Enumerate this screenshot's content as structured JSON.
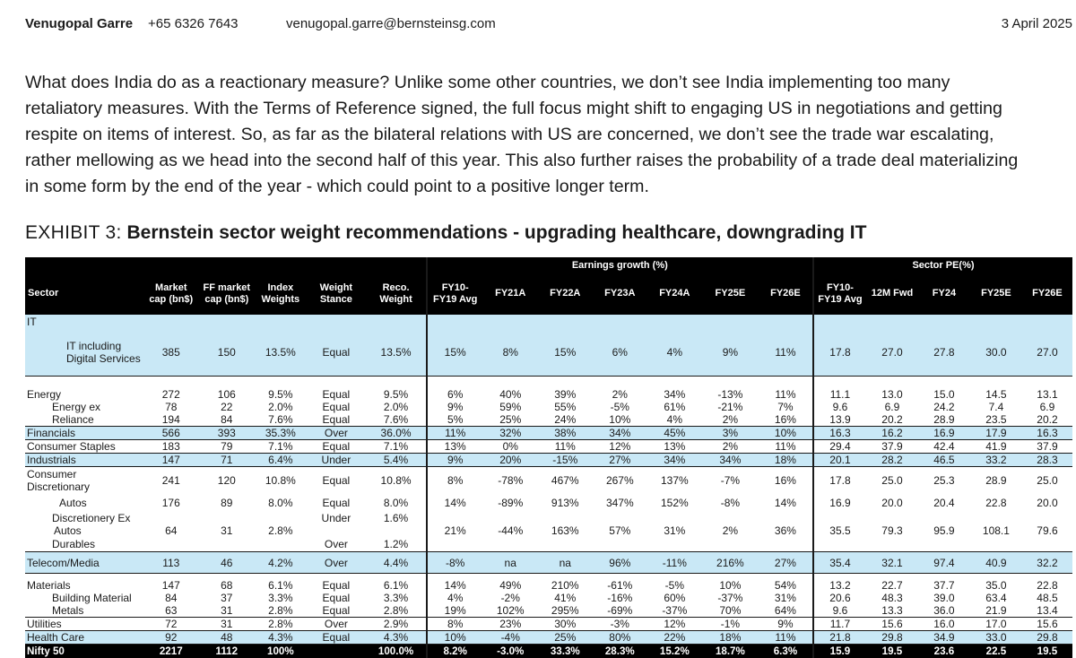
{
  "header": {
    "name": "Venugopal Garre",
    "phone": "+65 6326 7643",
    "email": "venugopal.garre@bernsteinsg.com",
    "date": "3 April 2025"
  },
  "paragraph_lines": [
    "What does India do as a reactionary measure? Unlike some other countries, we don’t see India implementing too many",
    "retaliatory measures. With the Terms of Reference signed, the full focus might shift to engaging US in negotiations and getting",
    "respite on items of interest. So, as far as the bilateral relations with US are concerned, we don’t see the trade war escalating,",
    "rather mellowing as we head into the second half of this year. This also further raises the probability of a trade deal materializing",
    "in some form by the end of the year - which could point to a positive longer term."
  ],
  "exhibit": {
    "number": "EXHIBIT 3:",
    "title": "Bernstein sector weight recommendations - upgrading healthcare, downgrading IT"
  },
  "table": {
    "group_headers": {
      "earnings": "Earnings growth (%)",
      "pe": "Sector PE(%)"
    },
    "columns": {
      "sector": "Sector",
      "mcap": [
        "Market",
        "cap (bn$)"
      ],
      "ffmcap": [
        "FF market",
        "cap (bn$)"
      ],
      "index": [
        "Index",
        "Weights"
      ],
      "stance": [
        "Weight",
        "Stance"
      ],
      "reco": [
        "Reco.",
        "Weight"
      ],
      "eg_fy10": [
        "FY10-",
        "FY19 Avg"
      ],
      "eg_fy21": "FY21A",
      "eg_fy22": "FY22A",
      "eg_fy23": "FY23A",
      "eg_fy24": "FY24A",
      "eg_fy25": "FY25E",
      "eg_fy26": "FY26E",
      "pe_fy10": [
        "FY10-",
        "FY19 Avg"
      ],
      "pe_12m": "12M Fwd",
      "pe_fy24": "FY24",
      "pe_fy25": "FY25E",
      "pe_fy26": "FY26E"
    },
    "it_block": {
      "header": "IT",
      "row": {
        "label": [
          "IT including",
          "Digital Services"
        ],
        "values": [
          "385",
          "150",
          "13.5%",
          "Equal",
          "13.5%",
          "15%",
          "8%",
          "15%",
          "6%",
          "4%",
          "9%",
          "11%",
          "17.8",
          "27.0",
          "27.8",
          "30.0",
          "27.0"
        ]
      }
    },
    "energy_block": [
      {
        "label": "Energy",
        "values": [
          "272",
          "106",
          "9.5%",
          "Equal",
          "9.5%",
          "6%",
          "40%",
          "39%",
          "2%",
          "34%",
          "-13%",
          "11%",
          "11.1",
          "13.0",
          "15.0",
          "14.5",
          "13.1"
        ]
      },
      {
        "label": "Energy ex",
        "values": [
          "78",
          "22",
          "2.0%",
          "Equal",
          "2.0%",
          "9%",
          "59%",
          "55%",
          "-5%",
          "61%",
          "-21%",
          "7%",
          "9.6",
          "6.9",
          "24.2",
          "7.4",
          "6.9"
        ]
      },
      {
        "label": "Reliance",
        "values": [
          "194",
          "84",
          "7.6%",
          "Equal",
          "7.6%",
          "5%",
          "25%",
          "24%",
          "10%",
          "4%",
          "2%",
          "16%",
          "13.9",
          "20.2",
          "28.9",
          "23.5",
          "20.2"
        ]
      }
    ],
    "financials": {
      "label": "Financials",
      "values": [
        "566",
        "393",
        "35.3%",
        "Over",
        "36.0%",
        "11%",
        "32%",
        "38%",
        "34%",
        "45%",
        "3%",
        "10%",
        "16.3",
        "16.2",
        "16.9",
        "17.9",
        "16.3"
      ]
    },
    "staples": {
      "label": "Consumer Staples",
      "values": [
        "183",
        "79",
        "7.1%",
        "Equal",
        "7.1%",
        "13%",
        "0%",
        "11%",
        "12%",
        "13%",
        "2%",
        "11%",
        "29.4",
        "37.9",
        "42.4",
        "41.9",
        "37.9"
      ]
    },
    "industrials": {
      "label": "Industrials",
      "values": [
        "147",
        "71",
        "6.4%",
        "Under",
        "5.4%",
        "9%",
        "20%",
        "-15%",
        "27%",
        "34%",
        "34%",
        "18%",
        "20.1",
        "28.2",
        "46.5",
        "33.2",
        "28.3"
      ]
    },
    "discretionary": {
      "label": [
        "Consumer",
        "Discretionary"
      ],
      "values": [
        "241",
        "120",
        "10.8%",
        "Equal",
        "10.8%",
        "8%",
        "-78%",
        "467%",
        "267%",
        "137%",
        "-7%",
        "16%",
        "17.8",
        "25.0",
        "25.3",
        "28.9",
        "25.0"
      ],
      "autos": {
        "label": "Autos",
        "values": [
          "176",
          "89",
          "8.0%",
          "Equal",
          "8.0%",
          "14%",
          "-89%",
          "913%",
          "347%",
          "152%",
          "-8%",
          "14%",
          "16.9",
          "20.0",
          "20.4",
          "22.8",
          "20.0"
        ]
      },
      "ex_autos": {
        "label": [
          "Discretionery Ex",
          "Autos"
        ],
        "stance": "Under",
        "reco": "1.6%",
        "values": [
          "64",
          "31",
          "2.8%",
          "21%",
          "-44%",
          "163%",
          "57%",
          "31%",
          "2%",
          "36%",
          "35.5",
          "79.3",
          "95.9",
          "108.1",
          "79.6"
        ]
      },
      "durables": {
        "label": "Durables",
        "stance": "Over",
        "reco": "1.2%"
      }
    },
    "telecom": {
      "label": "Telecom/Media",
      "values": [
        "113",
        "46",
        "4.2%",
        "Over",
        "4.4%",
        "-8%",
        "na",
        "na",
        "96%",
        "-11%",
        "216%",
        "27%",
        "35.4",
        "32.1",
        "97.4",
        "40.9",
        "32.2"
      ]
    },
    "materials_block": [
      {
        "label": "Materials",
        "values": [
          "147",
          "68",
          "6.1%",
          "Equal",
          "6.1%",
          "14%",
          "49%",
          "210%",
          "-61%",
          "-5%",
          "10%",
          "54%",
          "13.2",
          "22.7",
          "37.7",
          "35.0",
          "22.8"
        ]
      },
      {
        "label": "Building Material",
        "values": [
          "84",
          "37",
          "3.3%",
          "Equal",
          "3.3%",
          "4%",
          "-2%",
          "41%",
          "-16%",
          "60%",
          "-37%",
          "31%",
          "20.6",
          "48.3",
          "39.0",
          "63.4",
          "48.5"
        ]
      },
      {
        "label": "Metals",
        "values": [
          "63",
          "31",
          "2.8%",
          "Equal",
          "2.8%",
          "19%",
          "102%",
          "295%",
          "-69%",
          "-37%",
          "70%",
          "64%",
          "9.6",
          "13.3",
          "36.0",
          "21.9",
          "13.4"
        ]
      }
    ],
    "utilities": {
      "label": "Utilities",
      "values": [
        "72",
        "31",
        "2.8%",
        "Over",
        "2.9%",
        "8%",
        "23%",
        "30%",
        "-3%",
        "12%",
        "-1%",
        "9%",
        "11.7",
        "15.6",
        "16.0",
        "17.0",
        "15.6"
      ]
    },
    "healthcare": {
      "label": "Health Care",
      "values": [
        "92",
        "48",
        "4.3%",
        "Equal",
        "4.3%",
        "10%",
        "-4%",
        "25%",
        "80%",
        "22%",
        "18%",
        "11%",
        "21.8",
        "29.8",
        "34.9",
        "33.0",
        "29.8"
      ]
    },
    "nifty": {
      "label": "Nifty 50",
      "values": [
        "2217",
        "1112",
        "100%",
        "",
        "100.0%",
        "8.2%",
        "-3.0%",
        "33.3%",
        "28.3%",
        "15.2%",
        "18.7%",
        "6.3%",
        "15.9",
        "19.5",
        "23.6",
        "22.5",
        "19.5"
      ]
    }
  }
}
